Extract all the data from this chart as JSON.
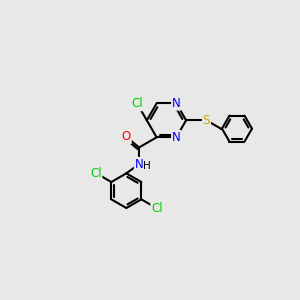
{
  "bg_color": "#e8e8e8",
  "bond_color": "#000000",
  "atom_colors": {
    "Cl": "#00cc00",
    "N": "#0000ff",
    "O": "#ff0000",
    "S": "#ccaa00",
    "H": "#000000",
    "C": "#000000"
  },
  "bond_width": 1.5,
  "fig_width": 3.0,
  "fig_height": 3.0,
  "dpi": 100
}
